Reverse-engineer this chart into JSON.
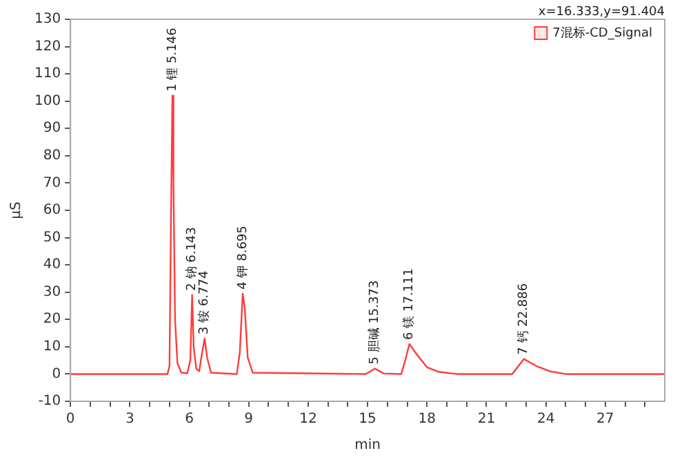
{
  "chart_data": {
    "type": "line",
    "xlabel": "min",
    "ylabel": "μS",
    "x": [
      0,
      4.9,
      5.0,
      5.08,
      5.146,
      5.2,
      5.28,
      5.4,
      5.6,
      5.9,
      6.05,
      6.143,
      6.22,
      6.35,
      6.5,
      6.65,
      6.774,
      6.9,
      7.1,
      8.4,
      8.55,
      8.695,
      8.8,
      8.95,
      9.2,
      14.9,
      15.373,
      15.8,
      16.7,
      16.9,
      17.111,
      17.5,
      18,
      18.6,
      19.5,
      22.3,
      22.886,
      23.5,
      24.2,
      25,
      30
    ],
    "series": [
      {
        "name": "7混标-CD_Signal",
        "color": "#ff3b3b",
        "values": [
          0,
          0,
          3,
          60,
          102,
          70,
          20,
          4,
          0.5,
          0.3,
          5,
          29,
          10,
          2,
          1,
          8,
          13,
          6,
          0.5,
          0,
          8,
          29.5,
          24,
          6,
          0.5,
          0,
          2,
          0.2,
          0,
          5,
          11,
          7,
          2.5,
          0.8,
          0,
          0,
          5.5,
          3,
          1,
          0,
          0
        ]
      }
    ],
    "xlim": [
      0,
      30
    ],
    "xticks": [
      0,
      {
        "value": 1,
        "label": null
      },
      {
        "value": 2,
        "label": null
      },
      3,
      {
        "value": 4,
        "label": null
      },
      {
        "value": 5,
        "label": null
      },
      6,
      {
        "value": 7,
        "label": null
      },
      {
        "value": 8,
        "label": null
      },
      9,
      {
        "value": 10,
        "label": null
      },
      {
        "value": 11,
        "label": null
      },
      12,
      {
        "value": 13,
        "label": null
      },
      {
        "value": 14,
        "label": null
      },
      15,
      {
        "value": 16,
        "label": null
      },
      {
        "value": 17,
        "label": null
      },
      18,
      {
        "value": 19,
        "label": null
      },
      {
        "value": 20,
        "label": null
      },
      21,
      {
        "value": 22,
        "label": null
      },
      {
        "value": 23,
        "label": null
      },
      24,
      {
        "value": 25,
        "label": null
      },
      {
        "value": 26,
        "label": null
      },
      27,
      {
        "value": 28,
        "label": null
      },
      {
        "value": 29,
        "label": null
      }
    ],
    "ylim": [
      -10,
      130
    ],
    "yticks": [
      -10,
      0,
      10,
      20,
      30,
      40,
      50,
      60,
      70,
      80,
      90,
      100,
      110,
      120,
      130
    ],
    "grid": false,
    "legend": "top right",
    "marker": "none",
    "line_style": "solid",
    "annotations": [
      {
        "text": "1 锂 5.146",
        "x": 5.146,
        "y": 102
      },
      {
        "text": "2 钠 6.143",
        "x": 6.143,
        "y": 29
      },
      {
        "text": "3 铵 6.774",
        "x": 6.774,
        "y": 13
      },
      {
        "text": "4 钾 8.695",
        "x": 8.695,
        "y": 29.5
      },
      {
        "text": "5 胆碱 15.373",
        "x": 15.373,
        "y": 2
      },
      {
        "text": "6 镁 17.111",
        "x": 17.111,
        "y": 11
      },
      {
        "text": "7 钙 22.886",
        "x": 22.886,
        "y": 5.5
      },
      "x=16.333,y=91.404"
    ]
  }
}
